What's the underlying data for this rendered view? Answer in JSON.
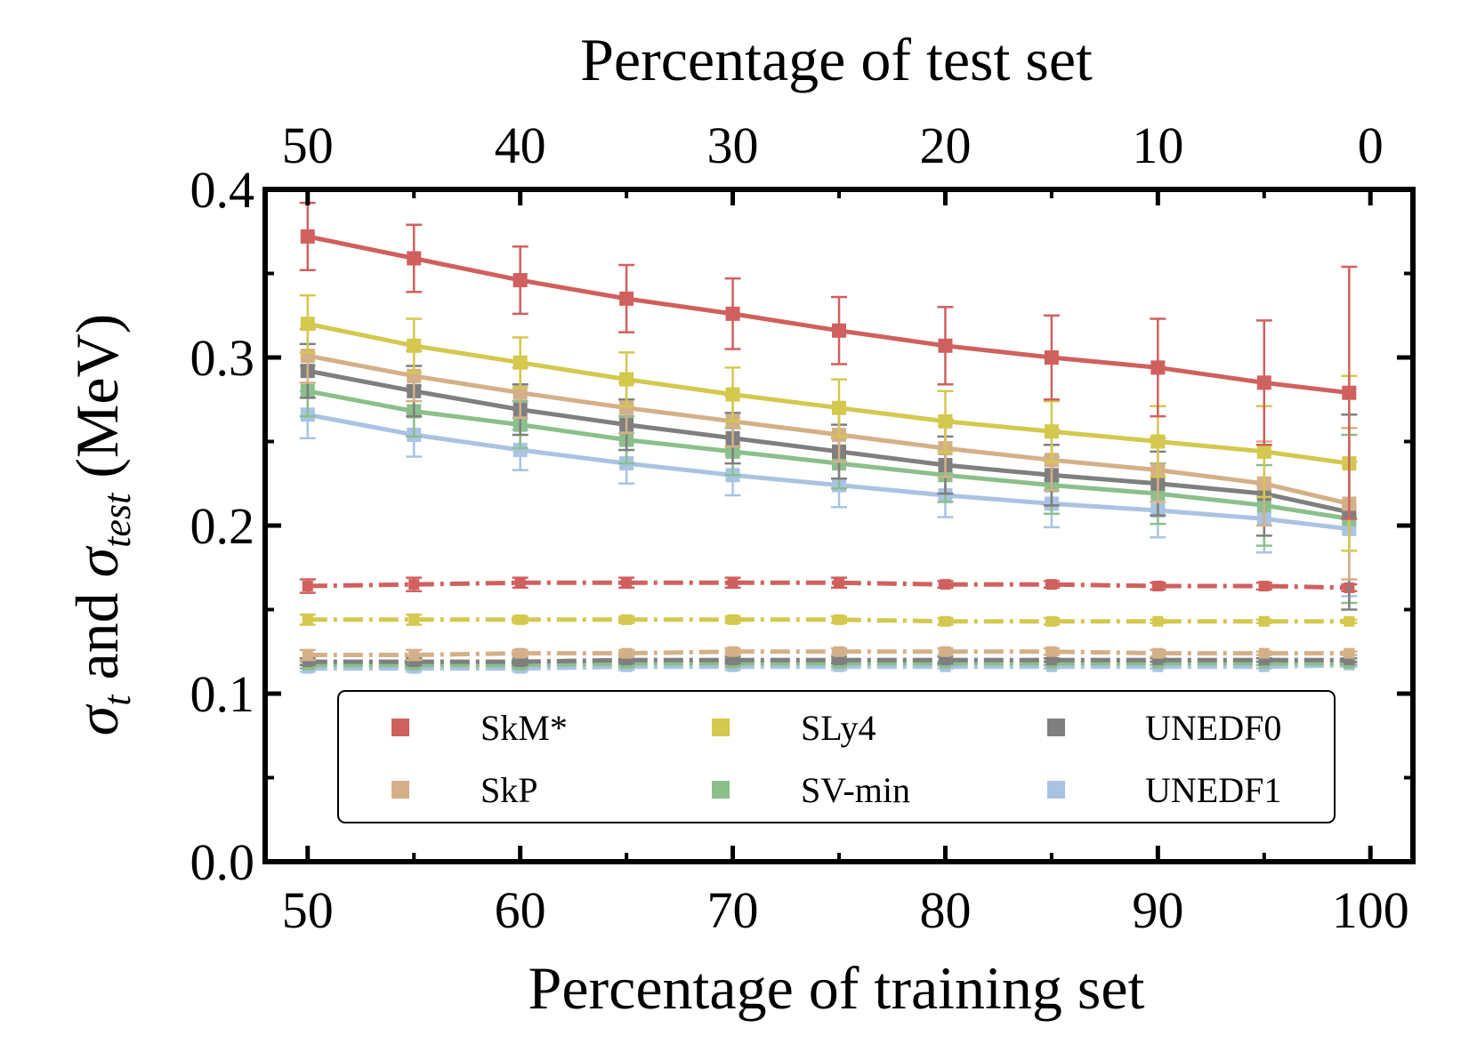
{
  "chart_data": {
    "type": "line",
    "title": "",
    "xlabel": "Percentage of training set",
    "xlabel_top": "Percentage of test set",
    "ylabel_parts": {
      "sym1": "σ",
      "sub1": "t",
      "mid": " and ",
      "sym2": "σ",
      "sub2": "test",
      "unit": " (MeV)"
    },
    "xlim": [
      48,
      102
    ],
    "ylim": [
      0.0,
      0.4
    ],
    "x_ticks": [
      "50",
      "60",
      "70",
      "80",
      "90",
      "100"
    ],
    "x_tick_values": [
      50,
      60,
      70,
      80,
      90,
      100
    ],
    "top_ticks": [
      "50",
      "40",
      "30",
      "20",
      "10",
      "0"
    ],
    "top_tick_positions": [
      50,
      60,
      70,
      80,
      90,
      100
    ],
    "y_ticks": [
      "0.0",
      "0.1",
      "0.2",
      "0.3",
      "0.4"
    ],
    "y_tick_values": [
      0.0,
      0.1,
      0.2,
      0.3,
      0.4
    ],
    "legend_placement": "lower-center",
    "x": [
      50,
      55,
      60,
      65,
      70,
      75,
      80,
      85,
      90,
      95,
      99
    ],
    "series": [
      {
        "name": "SkM*",
        "color": "#d0605e",
        "test_values": [
          0.372,
          0.359,
          0.346,
          0.335,
          0.326,
          0.316,
          0.307,
          0.3,
          0.294,
          0.285,
          0.279
        ],
        "test_errors": [
          0.02,
          0.02,
          0.02,
          0.02,
          0.021,
          0.02,
          0.023,
          0.025,
          0.029,
          0.037,
          0.075
        ],
        "train_values": [
          0.164,
          0.165,
          0.166,
          0.166,
          0.166,
          0.166,
          0.165,
          0.165,
          0.164,
          0.164,
          0.163
        ],
        "train_errors": [
          0.004,
          0.004,
          0.003,
          0.003,
          0.003,
          0.003,
          0.002,
          0.002,
          0.002,
          0.002,
          0.002
        ]
      },
      {
        "name": "SLy4",
        "color": "#d4c84e",
        "test_values": [
          0.32,
          0.307,
          0.297,
          0.287,
          0.278,
          0.27,
          0.262,
          0.256,
          0.25,
          0.244,
          0.237
        ],
        "test_errors": [
          0.017,
          0.016,
          0.015,
          0.016,
          0.016,
          0.017,
          0.018,
          0.018,
          0.021,
          0.027,
          0.052
        ],
        "train_values": [
          0.144,
          0.144,
          0.144,
          0.144,
          0.144,
          0.144,
          0.143,
          0.143,
          0.143,
          0.143,
          0.143
        ],
        "train_errors": [
          0.003,
          0.003,
          0.002,
          0.002,
          0.002,
          0.002,
          0.002,
          0.002,
          0.001,
          0.001,
          0.001
        ]
      },
      {
        "name": "UNEDF0",
        "color": "#7f7f7f",
        "test_values": [
          0.292,
          0.28,
          0.269,
          0.26,
          0.252,
          0.244,
          0.236,
          0.23,
          0.225,
          0.219,
          0.208
        ],
        "test_errors": [
          0.016,
          0.015,
          0.015,
          0.015,
          0.015,
          0.016,
          0.017,
          0.018,
          0.019,
          0.025,
          0.058
        ],
        "train_values": [
          0.119,
          0.119,
          0.119,
          0.12,
          0.12,
          0.12,
          0.12,
          0.12,
          0.12,
          0.12,
          0.12
        ],
        "train_errors": [
          0.002,
          0.002,
          0.002,
          0.002,
          0.002,
          0.002,
          0.002,
          0.001,
          0.001,
          0.001,
          0.001
        ]
      },
      {
        "name": "SkP",
        "color": "#d4b088",
        "test_values": [
          0.301,
          0.289,
          0.279,
          0.27,
          0.262,
          0.254,
          0.246,
          0.239,
          0.233,
          0.225,
          0.213
        ],
        "test_errors": [
          0.016,
          0.015,
          0.015,
          0.015,
          0.015,
          0.016,
          0.017,
          0.018,
          0.019,
          0.025,
          0.045
        ],
        "train_values": [
          0.123,
          0.123,
          0.124,
          0.124,
          0.125,
          0.125,
          0.125,
          0.125,
          0.124,
          0.124,
          0.124
        ],
        "train_errors": [
          0.003,
          0.003,
          0.002,
          0.002,
          0.002,
          0.002,
          0.002,
          0.002,
          0.002,
          0.001,
          0.001
        ]
      },
      {
        "name": "SV-min",
        "color": "#8bbf8b",
        "test_values": [
          0.28,
          0.268,
          0.26,
          0.251,
          0.244,
          0.237,
          0.23,
          0.224,
          0.219,
          0.212,
          0.204
        ],
        "test_errors": [
          0.015,
          0.015,
          0.014,
          0.014,
          0.014,
          0.015,
          0.016,
          0.017,
          0.018,
          0.024,
          0.05
        ],
        "train_values": [
          0.117,
          0.117,
          0.117,
          0.118,
          0.118,
          0.118,
          0.118,
          0.118,
          0.118,
          0.118,
          0.118
        ],
        "train_errors": [
          0.002,
          0.002,
          0.002,
          0.002,
          0.002,
          0.002,
          0.001,
          0.001,
          0.001,
          0.001,
          0.001
        ]
      },
      {
        "name": "UNEDF1",
        "color": "#a9c3e3",
        "test_values": [
          0.266,
          0.254,
          0.245,
          0.237,
          0.23,
          0.224,
          0.218,
          0.213,
          0.209,
          0.204,
          0.198
        ],
        "test_errors": [
          0.014,
          0.013,
          0.012,
          0.012,
          0.012,
          0.013,
          0.013,
          0.014,
          0.016,
          0.02,
          0.04
        ],
        "train_values": [
          0.115,
          0.115,
          0.115,
          0.116,
          0.116,
          0.116,
          0.116,
          0.116,
          0.116,
          0.116,
          0.117
        ],
        "train_errors": [
          0.002,
          0.002,
          0.002,
          0.002,
          0.002,
          0.002,
          0.001,
          0.001,
          0.001,
          0.001,
          0.001
        ]
      }
    ]
  }
}
